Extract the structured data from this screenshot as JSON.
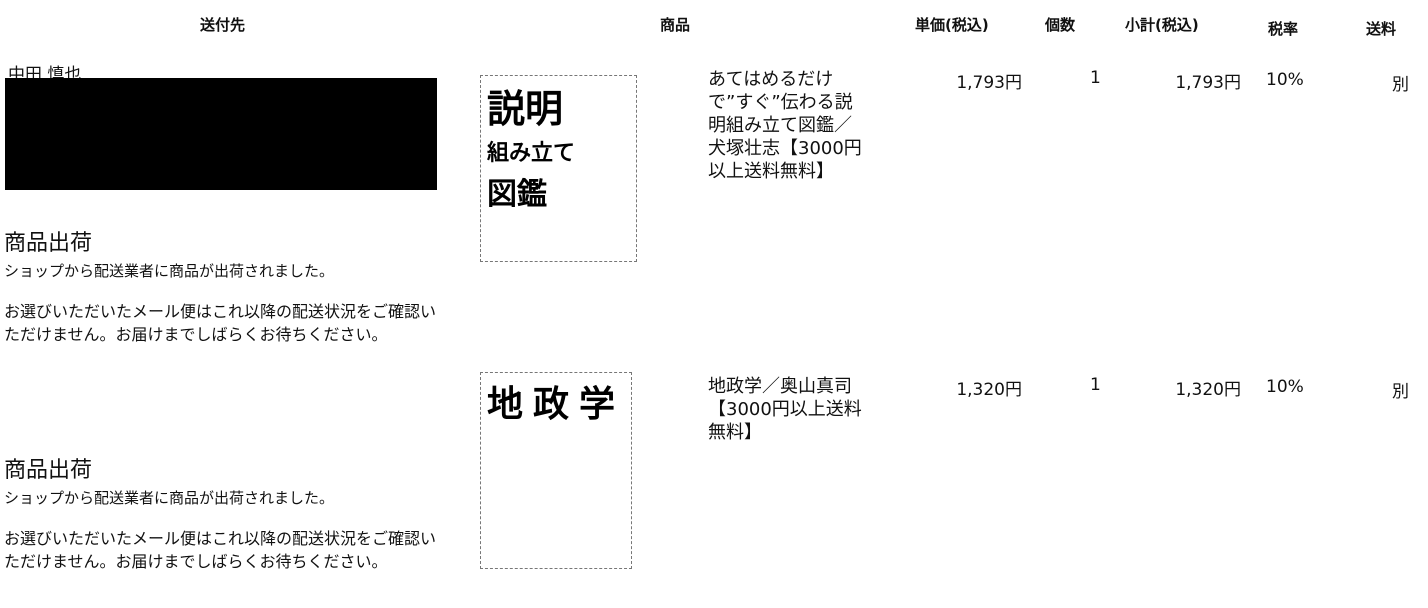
{
  "header": {
    "columns": [
      "送付先",
      "商品",
      "単価(税込)",
      "個数",
      "小計(税込)",
      "税率",
      "送料"
    ]
  },
  "recipient": {
    "name": "中田 慎也"
  },
  "shipments": [
    {
      "status": "商品出荷",
      "message": "ショップから配送業者に商品が出荷されました。",
      "note": "お選びいただいたメール便はこれ以降の配送状況をご確認いただけません。お届けまでしばらくお待ちください。"
    },
    {
      "status": "商品出荷",
      "message": "ショップから配送業者に商品が出荷されました。",
      "note": "お選びいただいたメール便はこれ以降の配送状況をご確認いただけません。お届けまでしばらくお待ちください。"
    }
  ],
  "items": [
    {
      "cover": [
        "説明",
        "組み立て",
        "図鑑"
      ],
      "name": "あてはめるだけで”すぐ”伝わる説明組み立て図鑑／犬塚壮志【3000円以上送料無料】",
      "unit_price": "1,793円",
      "quantity": "1",
      "subtotal": "1,793円",
      "tax_rate": "10%",
      "shipping": "別"
    },
    {
      "cover": [
        "地政学"
      ],
      "name": "地政学／奥山真司【3000円以上送料無料】",
      "unit_price": "1,320円",
      "quantity": "1",
      "subtotal": "1,320円",
      "tax_rate": "10%",
      "shipping": "別"
    }
  ]
}
